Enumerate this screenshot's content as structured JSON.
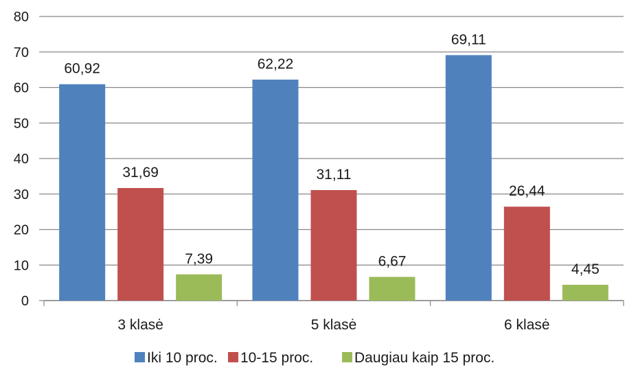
{
  "chart_data": {
    "type": "bar",
    "categories": [
      "3 klasė",
      "5 klasė",
      "6 klasė"
    ],
    "series": [
      {
        "name": "Iki 10 proc.",
        "values": [
          60.92,
          62.22,
          69.11
        ],
        "labels": [
          "60,92",
          "62,22",
          "69,11"
        ],
        "color": "#4F81BD"
      },
      {
        "name": "10-15 proc.",
        "values": [
          31.69,
          31.11,
          26.44
        ],
        "labels": [
          "31,69",
          "31,11",
          "26,44"
        ],
        "color": "#C0504D"
      },
      {
        "name": "Daugiau kaip 15 proc.",
        "values": [
          7.39,
          6.67,
          4.45
        ],
        "labels": [
          "7,39",
          "6,67",
          "4,45"
        ],
        "color": "#9BBB59"
      }
    ],
    "ylim": [
      0,
      80
    ],
    "yticks": [
      0,
      10,
      20,
      30,
      40,
      50,
      60,
      70,
      80
    ],
    "grid": true,
    "legend": "bottom",
    "axis_color": "#868686",
    "grid_color": "#868686"
  }
}
